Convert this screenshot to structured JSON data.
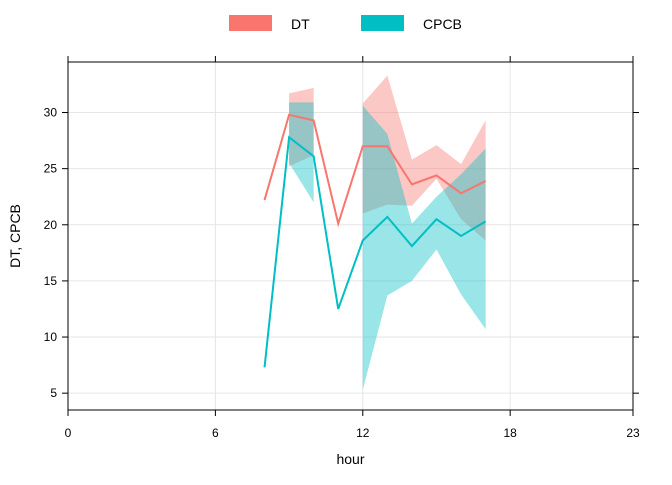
{
  "chart_data": {
    "type": "line",
    "xlabel": "hour",
    "ylabel": "DT, CPCB",
    "xlim": [
      0,
      23
    ],
    "ylim": [
      3.5,
      34.5
    ],
    "x_ticks": [
      0,
      6,
      12,
      18,
      23
    ],
    "y_ticks": [
      5,
      10,
      15,
      20,
      25,
      30
    ],
    "grid": true,
    "legend_position": "top",
    "series": [
      {
        "name": "DT",
        "color": "#F8766D",
        "fill_color": "#F8766D",
        "x": [
          8,
          9,
          10,
          11,
          12,
          13,
          14,
          15,
          16,
          17
        ],
        "values": [
          22.2,
          29.8,
          29.3,
          20.1,
          27.0,
          27.0,
          23.6,
          24.4,
          22.8,
          23.9
        ],
        "band": [
          {
            "x": 9,
            "lower": 25.2,
            "upper": 31.7
          },
          {
            "x": 10,
            "lower": 26.2,
            "upper": 32.2
          },
          {
            "x": 12,
            "lower": 21.0,
            "upper": 30.8
          },
          {
            "x": 13,
            "lower": 21.8,
            "upper": 33.3
          },
          {
            "x": 14,
            "lower": 21.7,
            "upper": 25.8
          },
          {
            "x": 15,
            "lower": 24.1,
            "upper": 27.1
          },
          {
            "x": 16,
            "lower": 20.5,
            "upper": 25.4
          },
          {
            "x": 17,
            "lower": 18.6,
            "upper": 29.3
          }
        ]
      },
      {
        "name": "CPCB",
        "color": "#00BFC4",
        "fill_color": "#00BFC4",
        "x": [
          8,
          9,
          10,
          11,
          12,
          13,
          14,
          15,
          16,
          17
        ],
        "values": [
          7.3,
          27.8,
          26.1,
          12.5,
          18.6,
          20.7,
          18.1,
          20.5,
          19.0,
          20.3
        ],
        "band": [
          {
            "x": 9,
            "lower": 25.5,
            "upper": 30.9
          },
          {
            "x": 10,
            "lower": 22.0,
            "upper": 30.9
          },
          {
            "x": 12,
            "lower": 5.3,
            "upper": 30.6
          },
          {
            "x": 13,
            "lower": 13.7,
            "upper": 28.1
          },
          {
            "x": 14,
            "lower": 15.0,
            "upper": 20.1
          },
          {
            "x": 15,
            "lower": 17.8,
            "upper": 22.5
          },
          {
            "x": 16,
            "lower": 13.8,
            "upper": 24.5
          },
          {
            "x": 17,
            "lower": 10.7,
            "upper": 26.8
          }
        ]
      }
    ]
  }
}
